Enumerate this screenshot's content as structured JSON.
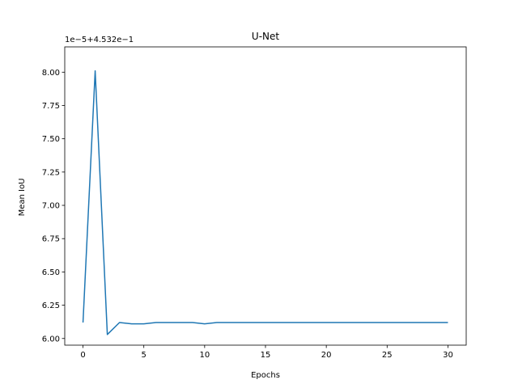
{
  "chart_data": {
    "type": "line",
    "title": "U-Net",
    "xlabel": "Epochs",
    "ylabel": "Mean IoU",
    "offset_label": "1e−5+4.532e−1",
    "xlim": [
      -1.5,
      31.5
    ],
    "ylim": [
      5.95,
      8.19
    ],
    "grid": false,
    "xticks": [
      0,
      5,
      10,
      15,
      20,
      25,
      30
    ],
    "xtick_labels": [
      "0",
      "5",
      "10",
      "15",
      "20",
      "25",
      "30"
    ],
    "yticks": [
      6.0,
      6.25,
      6.5,
      6.75,
      7.0,
      7.25,
      7.5,
      7.75,
      8.0
    ],
    "ytick_labels": [
      "6.00",
      "6.25",
      "6.50",
      "6.75",
      "7.00",
      "7.25",
      "7.50",
      "7.75",
      "8.00"
    ],
    "series": [
      {
        "color": "#1f77b4",
        "x": [
          0,
          1,
          2,
          3,
          4,
          5,
          6,
          7,
          8,
          9,
          10,
          11,
          12,
          13,
          14,
          15,
          16,
          17,
          18,
          19,
          20,
          21,
          22,
          23,
          24,
          25,
          26,
          27,
          28,
          29,
          30
        ],
        "values": [
          6.12,
          8.01,
          6.03,
          6.12,
          6.11,
          6.11,
          6.12,
          6.12,
          6.12,
          6.12,
          6.11,
          6.12,
          6.12,
          6.12,
          6.12,
          6.12,
          6.12,
          6.12,
          6.12,
          6.12,
          6.12,
          6.12,
          6.12,
          6.12,
          6.12,
          6.12,
          6.12,
          6.12,
          6.12,
          6.12,
          6.12
        ]
      }
    ]
  }
}
